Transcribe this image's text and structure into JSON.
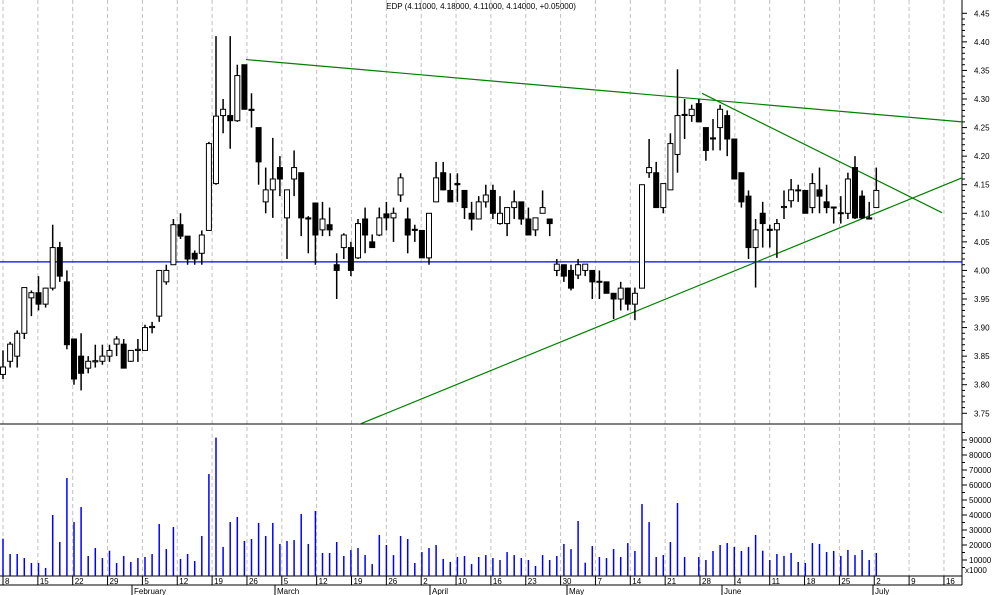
{
  "chart_data": {
    "type": "candlestick",
    "title": "EDP (4.11000, 4.18000, 4.11000, 4.14000, +0.05000)",
    "price_axis": {
      "range": [
        3.75,
        4.45
      ],
      "ticks": [
        "4.45",
        "4.40",
        "4.35",
        "4.30",
        "4.25",
        "4.20",
        "4.15",
        "4.10",
        "4.05",
        "4.00",
        "3.95",
        "3.90",
        "3.85",
        "3.80",
        "3.75"
      ],
      "side": "right"
    },
    "volume_axis": {
      "range": [
        0,
        90000
      ],
      "ticks": [
        "90000",
        "80000",
        "70000",
        "60000",
        "50000",
        "40000",
        "30000",
        "20000",
        "10000"
      ],
      "unit_label": "x1000",
      "side": "right"
    },
    "x_tick_labels": [
      "8",
      "15",
      "22",
      "29",
      "5",
      "12",
      "19",
      "26",
      "5",
      "12",
      "19",
      "26",
      "2",
      "10",
      "16",
      "23",
      "30",
      "7",
      "14",
      "21",
      "28",
      "4",
      "11",
      "18",
      "25",
      "2",
      "9",
      "16"
    ],
    "month_labels": [
      "February",
      "March",
      "April",
      "May",
      "June",
      "July"
    ],
    "grid": "vertical dashed",
    "colors": {
      "up_body": "#ffffff",
      "down_body": "#000000",
      "volume": "#0000ff",
      "support_line": "#0000ff",
      "trendline": "#008000",
      "grid": "#c0c0c0"
    },
    "ohlc": [
      [
        3.818,
        3.86,
        3.81,
        3.831
      ],
      [
        3.841,
        3.875,
        3.83,
        3.871
      ],
      [
        3.85,
        3.895,
        3.83,
        3.89
      ],
      [
        3.89,
        3.97,
        3.88,
        3.97
      ],
      [
        3.952,
        3.965,
        3.92,
        3.961
      ],
      [
        3.961,
        3.99,
        3.93,
        3.941
      ],
      [
        3.941,
        3.97,
        3.935,
        3.969
      ],
      [
        3.969,
        4.08,
        3.965,
        4.04
      ],
      [
        4.04,
        4.05,
        3.98,
        3.99
      ],
      [
        3.98,
        4.0,
        3.862,
        3.87
      ],
      [
        3.88,
        3.88,
        3.8,
        3.81
      ],
      [
        3.85,
        3.89,
        3.79,
        3.82
      ],
      [
        3.829,
        3.85,
        3.82,
        3.841
      ],
      [
        3.84,
        3.87,
        3.83,
        3.842
      ],
      [
        3.841,
        3.87,
        3.835,
        3.85
      ],
      [
        3.85,
        3.87,
        3.84,
        3.86
      ],
      [
        3.871,
        3.885,
        3.85,
        3.88
      ],
      [
        3.871,
        3.88,
        3.829,
        3.829
      ],
      [
        3.841,
        3.86,
        3.84,
        3.86
      ],
      [
        3.86,
        3.88,
        3.84,
        3.862
      ],
      [
        3.86,
        3.905,
        3.86,
        3.9
      ],
      [
        3.9,
        3.91,
        3.89,
        3.902
      ],
      [
        3.92,
        4.0,
        3.91,
        4.0
      ],
      [
        3.98,
        4.01,
        3.975,
        4.0
      ],
      [
        4.01,
        4.09,
        4.01,
        4.08
      ],
      [
        4.08,
        4.1,
        4.055,
        4.06
      ],
      [
        4.06,
        4.06,
        4.01,
        4.02
      ],
      [
        4.03,
        4.035,
        4.01,
        4.02
      ],
      [
        4.03,
        4.07,
        4.01,
        4.062
      ],
      [
        4.07,
        4.225,
        4.07,
        4.222
      ],
      [
        4.152,
        4.41,
        4.15,
        4.27
      ],
      [
        4.271,
        4.3,
        4.24,
        4.282
      ],
      [
        4.271,
        4.41,
        4.213,
        4.262
      ],
      [
        4.262,
        4.36,
        4.26,
        4.341
      ],
      [
        4.36,
        4.36,
        4.282,
        4.282
      ],
      [
        4.282,
        4.31,
        4.25,
        4.28
      ],
      [
        4.25,
        4.25,
        4.15,
        4.19
      ],
      [
        4.12,
        4.18,
        4.1,
        4.141
      ],
      [
        4.141,
        4.232,
        4.092,
        4.16
      ],
      [
        4.18,
        4.2,
        4.13,
        4.16
      ],
      [
        4.092,
        4.141,
        4.02,
        4.141
      ],
      [
        4.16,
        4.21,
        4.13,
        4.18
      ],
      [
        4.171,
        4.171,
        4.06,
        4.092
      ],
      [
        4.092,
        4.095,
        4.03,
        4.09
      ],
      [
        4.118,
        4.118,
        4.01,
        4.062
      ],
      [
        4.071,
        4.12,
        4.06,
        4.09
      ],
      [
        4.08,
        4.11,
        4.06,
        4.071
      ],
      [
        4.01,
        4.03,
        3.95,
        4.0
      ],
      [
        4.04,
        4.065,
        4.02,
        4.062
      ],
      [
        4.04,
        4.05,
        3.99,
        4.0
      ],
      [
        4.022,
        4.09,
        4.02,
        4.082
      ],
      [
        4.09,
        4.11,
        4.03,
        4.062
      ],
      [
        4.05,
        4.063,
        4.04,
        4.04
      ],
      [
        4.062,
        4.11,
        4.06,
        4.092
      ],
      [
        4.099,
        4.12,
        4.07,
        4.092
      ],
      [
        4.092,
        4.11,
        4.05,
        4.1
      ],
      [
        4.132,
        4.17,
        4.12,
        4.162
      ],
      [
        4.09,
        4.11,
        4.03,
        4.062
      ],
      [
        4.072,
        4.08,
        4.05,
        4.07
      ],
      [
        4.07,
        4.07,
        4.022,
        4.022
      ],
      [
        4.022,
        4.1,
        4.01,
        4.1
      ],
      [
        4.12,
        4.19,
        4.12,
        4.162
      ],
      [
        4.171,
        4.19,
        4.14,
        4.141
      ],
      [
        4.14,
        4.17,
        4.12,
        4.12
      ],
      [
        4.152,
        4.17,
        4.12,
        4.15
      ],
      [
        4.14,
        4.14,
        4.09,
        4.11
      ],
      [
        4.1,
        4.12,
        4.07,
        4.09
      ],
      [
        4.09,
        4.13,
        4.09,
        4.12
      ],
      [
        4.12,
        4.15,
        4.11,
        4.132
      ],
      [
        4.14,
        4.15,
        4.09,
        4.1
      ],
      [
        4.082,
        4.13,
        4.08,
        4.1
      ],
      [
        4.082,
        4.11,
        4.06,
        4.11
      ],
      [
        4.11,
        4.14,
        4.09,
        4.12
      ],
      [
        4.12,
        4.12,
        4.08,
        4.09
      ],
      [
        4.09,
        4.11,
        4.062,
        4.062
      ],
      [
        4.071,
        4.092,
        4.06,
        4.092
      ],
      [
        4.1,
        4.14,
        4.1,
        4.11
      ],
      [
        4.09,
        4.09,
        4.06,
        4.082
      ],
      [
        4.0,
        4.02,
        3.99,
        4.011
      ],
      [
        4.01,
        4.01,
        3.98,
        3.99
      ],
      [
        4.0,
        4.01,
        3.965,
        3.969
      ],
      [
        3.992,
        4.02,
        3.985,
        4.01
      ],
      [
        4.0,
        4.011,
        3.99,
        4.011
      ],
      [
        4.0,
        4.0,
        3.95,
        3.98
      ],
      [
        3.981,
        4.0,
        3.95,
        3.98
      ],
      [
        3.98,
        3.98,
        3.96,
        3.96
      ],
      [
        3.96,
        3.96,
        3.915,
        3.95
      ],
      [
        3.95,
        3.98,
        3.93,
        3.969
      ],
      [
        3.969,
        3.97,
        3.93,
        3.941
      ],
      [
        3.941,
        3.97,
        3.913,
        3.96
      ],
      [
        3.969,
        4.15,
        3.969,
        4.15
      ],
      [
        4.171,
        4.23,
        4.162,
        4.18
      ],
      [
        4.171,
        4.19,
        4.11,
        4.11
      ],
      [
        4.11,
        4.152,
        4.1,
        4.152
      ],
      [
        4.141,
        4.24,
        4.141,
        4.222
      ],
      [
        4.203,
        4.352,
        4.171,
        4.271
      ],
      [
        4.272,
        4.3,
        4.23,
        4.273
      ],
      [
        4.271,
        4.29,
        4.26,
        4.282
      ],
      [
        4.292,
        4.3,
        4.26,
        4.26
      ],
      [
        4.25,
        4.25,
        4.192,
        4.21
      ],
      [
        4.232,
        4.265,
        4.21,
        4.23
      ],
      [
        4.25,
        4.29,
        4.21,
        4.282
      ],
      [
        4.271,
        4.28,
        4.2,
        4.23
      ],
      [
        4.23,
        4.23,
        4.16,
        4.16
      ],
      [
        4.171,
        4.171,
        4.11,
        4.12
      ],
      [
        4.13,
        4.14,
        4.02,
        4.04
      ],
      [
        4.04,
        4.09,
        3.97,
        4.071
      ],
      [
        4.1,
        4.12,
        4.04,
        4.082
      ],
      [
        4.072,
        4.08,
        4.04,
        4.07
      ],
      [
        4.071,
        4.09,
        4.022,
        4.082
      ],
      [
        4.11,
        4.14,
        4.09,
        4.112
      ],
      [
        4.122,
        4.16,
        4.11,
        4.141
      ],
      [
        4.14,
        4.15,
        4.12,
        4.141
      ],
      [
        4.14,
        4.14,
        4.1,
        4.1
      ],
      [
        4.11,
        4.17,
        4.1,
        4.152
      ],
      [
        4.141,
        4.18,
        4.1,
        4.13
      ],
      [
        4.12,
        4.15,
        4.1,
        4.11
      ],
      [
        4.111,
        4.11,
        4.082,
        4.11
      ],
      [
        4.1,
        4.13,
        4.082,
        4.101
      ],
      [
        4.1,
        4.171,
        4.09,
        4.16
      ],
      [
        4.18,
        4.2,
        4.09,
        4.092
      ],
      [
        4.13,
        4.14,
        4.09,
        4.092
      ],
      [
        4.092,
        4.12,
        4.09,
        4.09
      ],
      [
        4.11,
        4.18,
        4.11,
        4.14
      ]
    ],
    "volume": [
      24200,
      14000,
      14000,
      11300,
      8000,
      8000,
      4700,
      40000,
      22000,
      64700,
      35300,
      45300,
      12700,
      18000,
      11300,
      16200,
      8000,
      12700,
      8700,
      11300,
      12000,
      14000,
      34000,
      17300,
      32000,
      10700,
      14000,
      9300,
      26000,
      67300,
      91600,
      18700,
      35300,
      38700,
      22700,
      24000,
      34700,
      26000,
      34700,
      20700,
      22700,
      23300,
      40700,
      20700,
      42700,
      14700,
      14700,
      22000,
      12700,
      16700,
      18000,
      13300,
      7300,
      26700,
      20000,
      13300,
      26000,
      24000,
      8000,
      15300,
      18000,
      20000,
      10700,
      8700,
      12000,
      12700,
      7300,
      12000,
      13300,
      11300,
      10000,
      15300,
      13300,
      11300,
      10000,
      6000,
      13300,
      10000,
      12700,
      20700,
      17300,
      36000,
      8200,
      19300,
      12000,
      11300,
      17300,
      12000,
      21300,
      16000,
      47300,
      35300,
      12000,
      13300,
      22000,
      48000,
      12000,
      0,
      12000,
      10000,
      16000,
      20000,
      21300,
      18700,
      16000,
      18700,
      26700,
      16200,
      10000,
      14000,
      12700,
      14700,
      8700,
      8000,
      21300,
      20700,
      15300,
      16000,
      12700,
      16700,
      13300,
      16700,
      10000,
      14700
    ],
    "horizontal_lines": [
      {
        "price": 4.015,
        "color": "#0000ff"
      }
    ],
    "trendlines": [
      {
        "start_price": 4.369,
        "end_price": 4.26
      },
      {
        "start_price": 4.31,
        "end_price": 4.101
      },
      {
        "start_price": 3.729,
        "end_price": 4.162
      }
    ]
  }
}
